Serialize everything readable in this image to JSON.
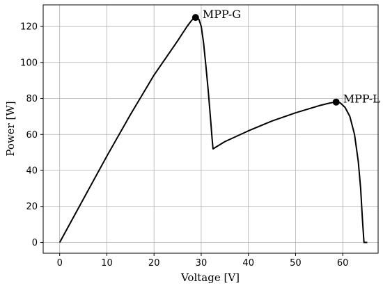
{
  "chart_data": {
    "type": "line",
    "title": "",
    "xlabel": "Voltage [V]",
    "ylabel": "Power [W]",
    "xlim": [
      -3.5,
      67.5
    ],
    "ylim": [
      -6,
      132
    ],
    "xticks": [
      0,
      10,
      20,
      30,
      40,
      50,
      60
    ],
    "yticks": [
      0,
      20,
      40,
      60,
      80,
      100,
      120
    ],
    "grid": true,
    "series": [
      {
        "x": [
          0,
          5,
          10,
          15,
          20,
          25,
          27,
          28,
          28.8,
          29.5,
          30,
          30.5,
          31,
          31.5,
          32,
          32.3,
          32.5,
          35,
          40,
          45,
          50,
          55,
          57,
          58,
          58.6,
          59.5,
          60.5,
          61.5,
          62.5,
          63.3,
          63.8,
          64.2,
          64.5,
          65.2
        ],
        "y": [
          0,
          24,
          48,
          71,
          93,
          112,
          120,
          123.5,
          125,
          124,
          120,
          111,
          98,
          84,
          68,
          58,
          52,
          56,
          62,
          67.5,
          72,
          76,
          77.3,
          77.8,
          78,
          77.5,
          75,
          70,
          60,
          45,
          30,
          12,
          0,
          0
        ]
      }
    ],
    "annotations": [
      {
        "text": "MPP-G",
        "x": 28.8,
        "y": 125
      },
      {
        "text": "MPP-L",
        "x": 58.6,
        "y": 78
      }
    ]
  }
}
